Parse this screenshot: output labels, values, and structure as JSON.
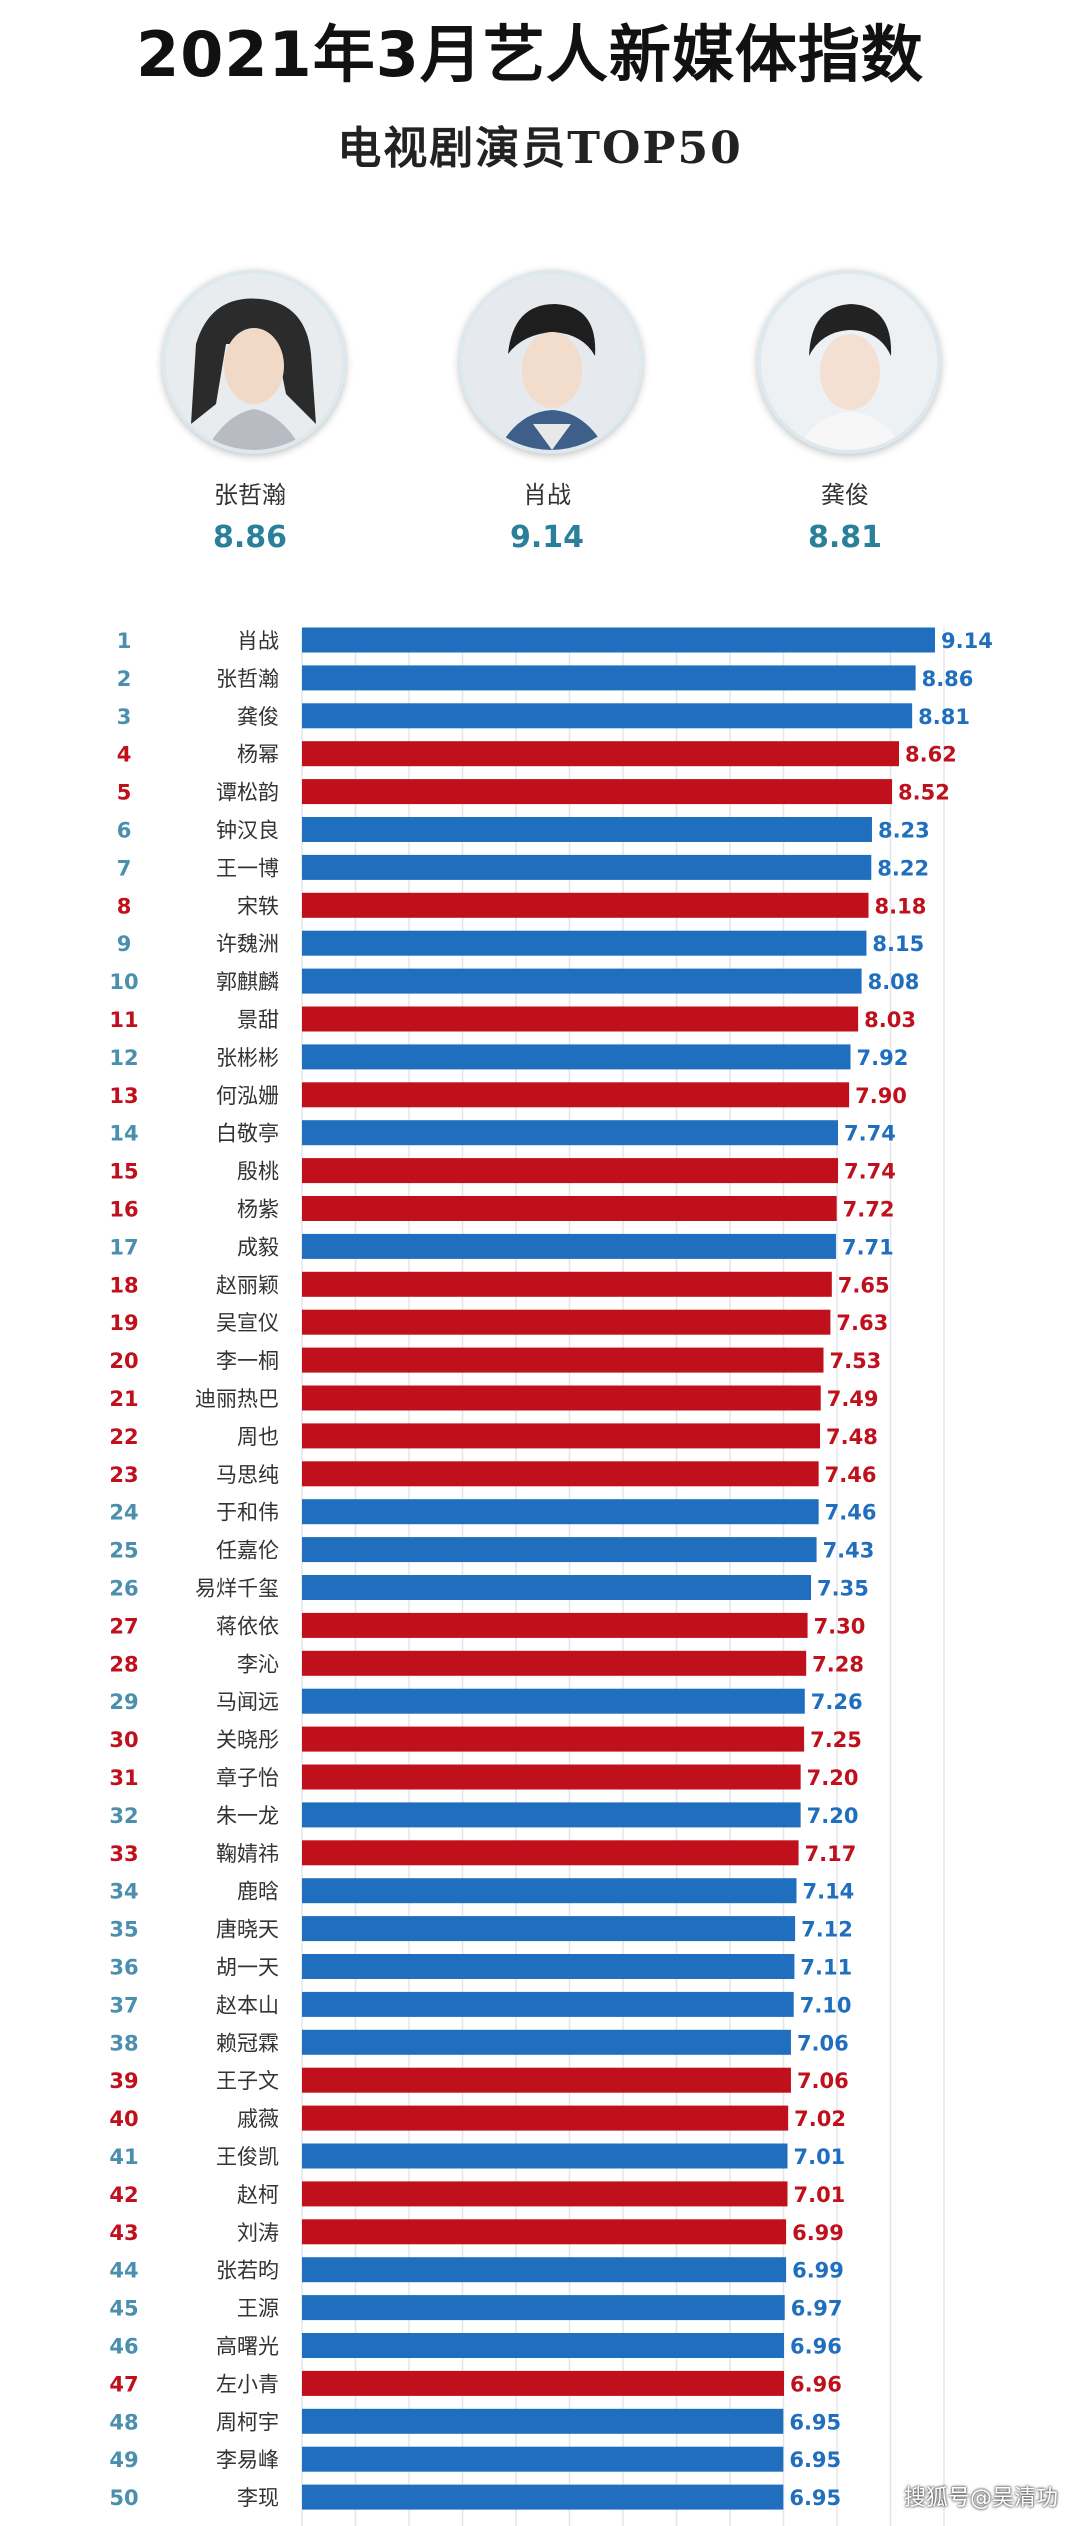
{
  "header": {
    "title": "2021年3月艺人新媒体指数",
    "subtitle": "电视剧演员TOP50"
  },
  "podium": [
    {
      "name": "张哲瀚",
      "score": "8.86"
    },
    {
      "name": "肖战",
      "score": "9.14"
    },
    {
      "name": "龚俊",
      "score": "8.81"
    }
  ],
  "colors": {
    "blue": "#1f6fbe",
    "red": "#c0101c",
    "rank_blue": "#4a8fae",
    "rank_red": "#c0101c"
  },
  "chart_data": {
    "type": "bar",
    "orientation": "horizontal",
    "xlim": [
      0,
      9.14
    ],
    "grid": true,
    "rows": [
      {
        "rank": "1",
        "name": "肖战",
        "value": 9.14,
        "color": "blue"
      },
      {
        "rank": "2",
        "name": "张哲瀚",
        "value": 8.86,
        "color": "blue"
      },
      {
        "rank": "3",
        "name": "龚俊",
        "value": 8.81,
        "color": "blue"
      },
      {
        "rank": "4",
        "name": "杨幂",
        "value": 8.62,
        "color": "red"
      },
      {
        "rank": "5",
        "name": "谭松韵",
        "value": 8.52,
        "color": "red"
      },
      {
        "rank": "6",
        "name": "钟汉良",
        "value": 8.23,
        "color": "blue"
      },
      {
        "rank": "7",
        "name": "王一博",
        "value": 8.22,
        "color": "blue"
      },
      {
        "rank": "8",
        "name": "宋轶",
        "value": 8.18,
        "color": "red"
      },
      {
        "rank": "9",
        "name": "许魏洲",
        "value": 8.15,
        "color": "blue"
      },
      {
        "rank": "10",
        "name": "郭麒麟",
        "value": 8.08,
        "color": "blue"
      },
      {
        "rank": "11",
        "name": "景甜",
        "value": 8.03,
        "color": "red"
      },
      {
        "rank": "12",
        "name": "张彬彬",
        "value": 7.92,
        "color": "blue"
      },
      {
        "rank": "13",
        "name": "何泓姗",
        "value": 7.9,
        "color": "red"
      },
      {
        "rank": "14",
        "name": "白敬亭",
        "value": 7.74,
        "color": "blue"
      },
      {
        "rank": "15",
        "name": "殷桃",
        "value": 7.74,
        "color": "red"
      },
      {
        "rank": "16",
        "name": "杨紫",
        "value": 7.72,
        "color": "red"
      },
      {
        "rank": "17",
        "name": "成毅",
        "value": 7.71,
        "color": "blue"
      },
      {
        "rank": "18",
        "name": "赵丽颖",
        "value": 7.65,
        "color": "red"
      },
      {
        "rank": "19",
        "name": "吴宣仪",
        "value": 7.63,
        "color": "red"
      },
      {
        "rank": "20",
        "name": "李一桐",
        "value": 7.53,
        "color": "red"
      },
      {
        "rank": "21",
        "name": "迪丽热巴",
        "value": 7.49,
        "color": "red"
      },
      {
        "rank": "22",
        "name": "周也",
        "value": 7.48,
        "color": "red"
      },
      {
        "rank": "23",
        "name": "马思纯",
        "value": 7.46,
        "color": "red"
      },
      {
        "rank": "24",
        "name": "于和伟",
        "value": 7.46,
        "color": "blue"
      },
      {
        "rank": "25",
        "name": "任嘉伦",
        "value": 7.43,
        "color": "blue"
      },
      {
        "rank": "26",
        "name": "易烊千玺",
        "value": 7.35,
        "color": "blue"
      },
      {
        "rank": "27",
        "name": "蒋依依",
        "value": 7.3,
        "color": "red"
      },
      {
        "rank": "28",
        "name": "李沁",
        "value": 7.28,
        "color": "red"
      },
      {
        "rank": "29",
        "name": "马闻远",
        "value": 7.26,
        "color": "blue"
      },
      {
        "rank": "30",
        "name": "关晓彤",
        "value": 7.25,
        "color": "red"
      },
      {
        "rank": "31",
        "name": "章子怡",
        "value": 7.2,
        "color": "red"
      },
      {
        "rank": "32",
        "name": "朱一龙",
        "value": 7.2,
        "color": "blue"
      },
      {
        "rank": "33",
        "name": "鞠婧祎",
        "value": 7.17,
        "color": "red"
      },
      {
        "rank": "34",
        "name": "鹿晗",
        "value": 7.14,
        "color": "blue"
      },
      {
        "rank": "35",
        "name": "唐晓天",
        "value": 7.12,
        "color": "blue"
      },
      {
        "rank": "36",
        "name": "胡一天",
        "value": 7.11,
        "color": "blue"
      },
      {
        "rank": "37",
        "name": "赵本山",
        "value": 7.1,
        "color": "blue"
      },
      {
        "rank": "38",
        "name": "赖冠霖",
        "value": 7.06,
        "color": "blue"
      },
      {
        "rank": "39",
        "name": "王子文",
        "value": 7.06,
        "color": "red"
      },
      {
        "rank": "40",
        "name": "戚薇",
        "value": 7.02,
        "color": "red"
      },
      {
        "rank": "41",
        "name": "王俊凯",
        "value": 7.01,
        "color": "blue"
      },
      {
        "rank": "42",
        "name": "赵柯",
        "value": 7.01,
        "color": "red"
      },
      {
        "rank": "43",
        "name": "刘涛",
        "value": 6.99,
        "color": "red"
      },
      {
        "rank": "44",
        "name": "张若昀",
        "value": 6.99,
        "color": "blue"
      },
      {
        "rank": "45",
        "name": "王源",
        "value": 6.97,
        "color": "blue"
      },
      {
        "rank": "46",
        "name": "高曙光",
        "value": 6.96,
        "color": "blue"
      },
      {
        "rank": "47",
        "name": "左小青",
        "value": 6.96,
        "color": "red"
      },
      {
        "rank": "48",
        "name": "周柯宇",
        "value": 6.95,
        "color": "blue"
      },
      {
        "rank": "49",
        "name": "李易峰",
        "value": 6.95,
        "color": "blue"
      },
      {
        "rank": "50",
        "name": "李现",
        "value": 6.95,
        "color": "blue"
      }
    ]
  },
  "footer": {
    "watermark": "搜狐号@吴清功"
  }
}
